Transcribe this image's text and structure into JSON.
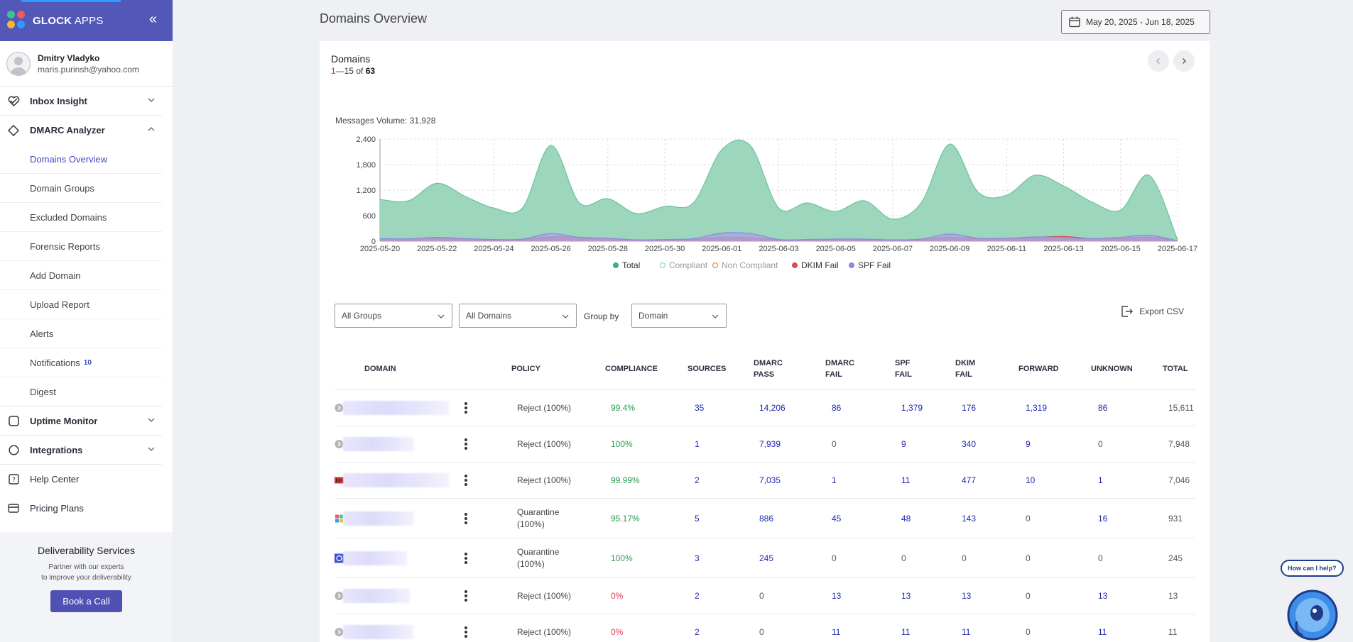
{
  "brand": {
    "name_bold": "GLOCK",
    "name_light": " APPS"
  },
  "user": {
    "name": "Dmitry Vladyko",
    "email": "maris.purinsh@yahoo.com"
  },
  "nav": {
    "inbox_insight": "Inbox Insight",
    "dmarc_analyzer": "DMARC Analyzer",
    "dmarc_items": [
      "Domains Overview",
      "Domain Groups",
      "Excluded Domains",
      "Forensic Reports",
      "Add Domain",
      "Upload Report",
      "Alerts",
      "Notifications",
      "Digest"
    ],
    "notifications_badge": "10",
    "uptime_monitor": "Uptime Monitor",
    "integrations": "Integrations",
    "help_center": "Help Center",
    "pricing_plans": "Pricing Plans"
  },
  "deliverability": {
    "title": "Deliverability Services",
    "line1": "Partner with our experts",
    "line2": "to improve your deliverability",
    "button": "Book a Call"
  },
  "page": {
    "title": "Domains Overview",
    "date_range": "May 20, 2025 - Jun 18, 2025"
  },
  "card": {
    "title": "Domains",
    "range_first": "1",
    "range_rest": "—15 of ",
    "range_total": "63"
  },
  "chart_data": {
    "type": "area",
    "title": "Messages Volume: 31,928",
    "ylim": [
      0,
      2400
    ],
    "yticks": [
      "2,400",
      "1,800",
      "1,200",
      "600",
      "0"
    ],
    "ytick_values": [
      2400,
      1800,
      1200,
      600,
      0
    ],
    "xtick_labels": [
      "2025-05-20",
      "2025-05-22",
      "2025-05-24",
      "2025-05-26",
      "2025-05-28",
      "2025-05-30",
      "2025-06-01",
      "2025-06-03",
      "2025-06-05",
      "2025-06-07",
      "2025-06-09",
      "2025-06-11",
      "2025-06-13",
      "2025-06-15",
      "2025-06-17"
    ],
    "x": [
      "2025-05-20",
      "2025-05-21",
      "2025-05-22",
      "2025-05-23",
      "2025-05-24",
      "2025-05-25",
      "2025-05-26",
      "2025-05-27",
      "2025-05-28",
      "2025-05-29",
      "2025-05-30",
      "2025-05-31",
      "2025-06-01",
      "2025-06-02",
      "2025-06-03",
      "2025-06-04",
      "2025-06-05",
      "2025-06-06",
      "2025-06-07",
      "2025-06-08",
      "2025-06-09",
      "2025-06-10",
      "2025-06-11",
      "2025-06-12",
      "2025-06-13",
      "2025-06-14",
      "2025-06-15",
      "2025-06-16",
      "2025-06-17"
    ],
    "series": [
      {
        "name": "Total",
        "color": "#9cd6bd",
        "stroke": "#6dc29c",
        "values": [
          980,
          950,
          1360,
          1050,
          780,
          780,
          2250,
          900,
          1000,
          650,
          820,
          900,
          2150,
          2250,
          780,
          900,
          700,
          950,
          520,
          900,
          2280,
          1150,
          1080,
          1550,
          1300,
          920,
          730,
          1550,
          30
        ]
      },
      {
        "name": "Compliant",
        "color": "#c8ead9",
        "stroke": "#8fd3b1",
        "values": [
          0,
          0,
          0,
          0,
          0,
          0,
          0,
          0,
          0,
          0,
          0,
          0,
          0,
          0,
          0,
          0,
          0,
          0,
          0,
          0,
          0,
          0,
          0,
          0,
          0,
          0,
          0,
          0,
          0
        ]
      },
      {
        "name": "Non Compliant",
        "color": "#f4a46b",
        "stroke": "#f08a45",
        "values": [
          30,
          30,
          40,
          30,
          20,
          20,
          40,
          40,
          30,
          20,
          20,
          20,
          40,
          40,
          20,
          20,
          20,
          20,
          20,
          20,
          40,
          30,
          30,
          40,
          40,
          30,
          30,
          40,
          10
        ]
      },
      {
        "name": "DKIM Fail",
        "color": "#e66a6a",
        "stroke": "#d94c4c",
        "values": [
          50,
          50,
          70,
          50,
          30,
          40,
          100,
          90,
          60,
          30,
          30,
          40,
          90,
          80,
          30,
          30,
          40,
          40,
          30,
          40,
          90,
          60,
          60,
          90,
          110,
          60,
          60,
          90,
          10
        ]
      },
      {
        "name": "SPF Fail",
        "color": "#a6a3e8",
        "stroke": "#8d88e0",
        "values": [
          60,
          55,
          90,
          60,
          40,
          50,
          180,
          90,
          70,
          30,
          40,
          60,
          190,
          180,
          40,
          40,
          50,
          50,
          30,
          50,
          170,
          70,
          70,
          100,
          90,
          60,
          90,
          140,
          10
        ]
      }
    ],
    "legend_position": "bottom",
    "grid": true
  },
  "filters": {
    "groups": "All Groups",
    "domains": "All Domains",
    "group_by_label": "Group by",
    "group_by_value": "Domain",
    "export": "Export CSV"
  },
  "table": {
    "headers": {
      "domain": "DOMAIN",
      "policy": "POLICY",
      "compliance": "COMPLIANCE",
      "sources": "SOURCES",
      "dmarc_pass_1": "DMARC",
      "dmarc_pass_2": "PASS",
      "dmarc_fail_1": "DMARC",
      "dmarc_fail_2": "FAIL",
      "spf_fail_1": "SPF",
      "spf_fail_2": "FAIL",
      "dkim_fail_1": "DKIM",
      "dkim_fail_2": "FAIL",
      "forward": "FORWARD",
      "unknown": "UNKNOWN",
      "total": "TOTAL"
    },
    "rows": [
      {
        "icon": "chevron",
        "policy1": "Reject (100%)",
        "policy2": "",
        "compliance": "99.4%",
        "comp_color": "green",
        "sources": "35",
        "dmarc_pass": "14,206",
        "dmarc_fail": "86",
        "spf_fail": "1,379",
        "dkim_fail": "176",
        "forward": "1,319",
        "unknown": "86",
        "total": "15,611"
      },
      {
        "icon": "chevron",
        "policy1": "Reject (100%)",
        "policy2": "",
        "compliance": "100%",
        "comp_color": "green",
        "sources": "1",
        "dmarc_pass": "7,939",
        "dmarc_fail": "0",
        "spf_fail": "9",
        "dkim_fail": "340",
        "forward": "9",
        "unknown": "0",
        "total": "7,948"
      },
      {
        "icon": "favicon-red",
        "policy1": "Reject (100%)",
        "policy2": "",
        "compliance": "99.99%",
        "comp_color": "green",
        "sources": "2",
        "dmarc_pass": "7,035",
        "dmarc_fail": "1",
        "spf_fail": "11",
        "dkim_fail": "477",
        "forward": "10",
        "unknown": "1",
        "total": "7,046"
      },
      {
        "icon": "favicon-multi",
        "policy1": "Quarantine",
        "policy2": "(100%)",
        "compliance": "95.17%",
        "comp_color": "green",
        "sources": "5",
        "dmarc_pass": "886",
        "dmarc_fail": "45",
        "spf_fail": "48",
        "dkim_fail": "143",
        "forward": "0",
        "unknown": "16",
        "total": "931"
      },
      {
        "icon": "favicon-blue",
        "policy1": "Quarantine",
        "policy2": "(100%)",
        "compliance": "100%",
        "comp_color": "green",
        "sources": "3",
        "dmarc_pass": "245",
        "dmarc_fail": "0",
        "spf_fail": "0",
        "dkim_fail": "0",
        "forward": "0",
        "unknown": "0",
        "total": "245"
      },
      {
        "icon": "chevron",
        "policy1": "Reject (100%)",
        "policy2": "",
        "compliance": "0%",
        "comp_color": "red",
        "sources": "2",
        "dmarc_pass": "0",
        "dmarc_fail": "13",
        "spf_fail": "13",
        "dkim_fail": "13",
        "forward": "0",
        "unknown": "13",
        "total": "13"
      },
      {
        "icon": "chevron",
        "policy1": "Reject (100%)",
        "policy2": "",
        "compliance": "0%",
        "comp_color": "red",
        "sources": "2",
        "dmarc_pass": "0",
        "dmarc_fail": "11",
        "spf_fail": "11",
        "dkim_fail": "11",
        "forward": "0",
        "unknown": "11",
        "total": "11"
      }
    ]
  },
  "help": {
    "bubble": "How can I help?"
  }
}
